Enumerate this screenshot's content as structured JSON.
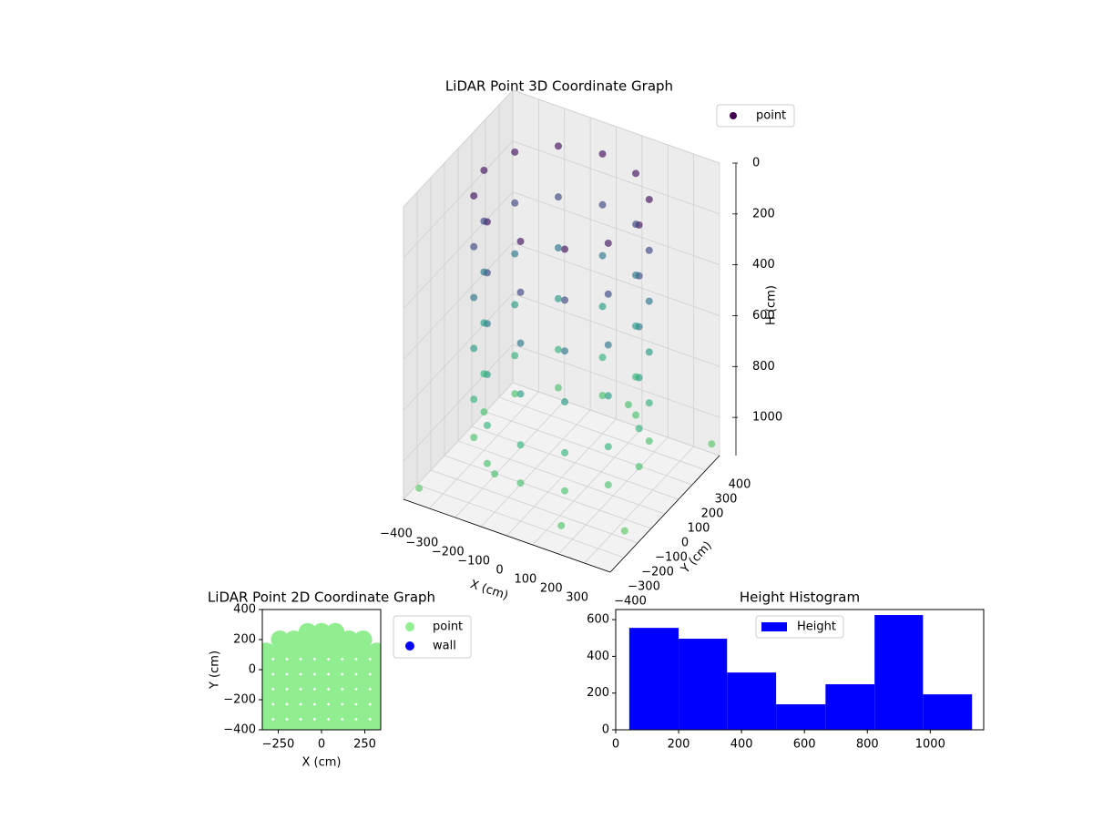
{
  "chart_data": [
    {
      "type": "scatter3d",
      "title": "LiDAR Point 3D Coordinate Graph",
      "xlabel": "X (cm)",
      "ylabel": "Y (cm)",
      "zlabel": "H (cm)",
      "colormap": "viridis",
      "legend": "upper right",
      "xlim": [
        -400,
        400
      ],
      "ylim": [
        -400,
        400
      ],
      "zlim": [
        1150,
        0
      ],
      "xticks": [
        {
          "value": -400,
          "label": "−400"
        },
        {
          "value": -300,
          "label": "−300"
        },
        {
          "value": -200,
          "label": "−200"
        },
        {
          "value": -100,
          "label": "−100"
        },
        0,
        100,
        200,
        300
      ],
      "yticks": [
        {
          "value": -400,
          "label": "−400"
        },
        {
          "value": -300,
          "label": "−300"
        },
        {
          "value": -200,
          "label": "−200"
        },
        {
          "value": -100,
          "label": "−100"
        },
        0,
        100,
        200,
        300,
        400
      ],
      "zticks": [
        0,
        200,
        400,
        600,
        800,
        1000
      ],
      "series": [
        {
          "name": "point",
          "color": "#440154",
          "x": [
            300,
            260,
            150,
            0,
            -150,
            -260,
            -300,
            -260,
            -150,
            0,
            150,
            260,
            300,
            260,
            150,
            0,
            -150,
            -260,
            -300,
            -260,
            -150,
            0,
            150,
            260,
            300,
            260,
            150,
            0,
            -150,
            -260,
            -300,
            -260,
            -150,
            0,
            150,
            260,
            300,
            260,
            150,
            0,
            -150,
            -260,
            -300,
            -260,
            -150,
            0,
            150,
            260,
            300,
            260,
            150,
            0,
            -150,
            -260,
            -300,
            -260,
            -150,
            0,
            150,
            260,
            300,
            260,
            150,
            0,
            -150,
            -260,
            -300,
            -260,
            -150,
            0,
            150,
            260,
            -350,
            380,
            200,
            -100,
            350,
            100
          ],
          "y": [
            0,
            150,
            260,
            300,
            260,
            150,
            0,
            -150,
            -260,
            -300,
            -260,
            -150,
            0,
            150,
            260,
            300,
            260,
            150,
            0,
            -150,
            -260,
            -300,
            -260,
            -150,
            0,
            150,
            260,
            300,
            260,
            150,
            0,
            -150,
            -260,
            -300,
            -260,
            -150,
            0,
            150,
            260,
            300,
            260,
            150,
            0,
            -150,
            -260,
            -300,
            -260,
            -150,
            0,
            150,
            260,
            300,
            260,
            150,
            0,
            -150,
            -260,
            -300,
            -260,
            -150,
            0,
            150,
            260,
            300,
            260,
            150,
            0,
            -150,
            -260,
            -300,
            -260,
            -150,
            -380,
            380,
            -380,
            -300,
            -200,
            300
          ],
          "h": [
            50,
            50,
            50,
            50,
            50,
            50,
            50,
            50,
            50,
            50,
            50,
            50,
            250,
            250,
            250,
            250,
            250,
            250,
            250,
            250,
            250,
            250,
            250,
            250,
            450,
            450,
            450,
            450,
            450,
            450,
            450,
            450,
            450,
            450,
            450,
            450,
            650,
            650,
            650,
            650,
            650,
            650,
            650,
            650,
            650,
            650,
            650,
            650,
            850,
            850,
            850,
            850,
            850,
            850,
            850,
            850,
            850,
            850,
            850,
            850,
            1000,
            1000,
            1000,
            1000,
            1000,
            1000,
            1000,
            1000,
            1000,
            1000,
            1000,
            1000,
            1100,
            1100,
            1050,
            1000,
            1120,
            1000
          ]
        }
      ]
    },
    {
      "type": "scatter",
      "title": "LiDAR Point 2D Coordinate Graph",
      "xlabel": "X (cm)",
      "ylabel": "Y (cm)",
      "legend": "outside right",
      "xlim": [
        -342,
        342
      ],
      "ylim": [
        -400,
        400
      ],
      "xticks": [
        {
          "value": -250,
          "label": "−250"
        },
        0,
        250
      ],
      "yticks": [
        {
          "value": -400,
          "label": "−400"
        },
        {
          "value": -200,
          "label": "−200"
        },
        0,
        200,
        400
      ],
      "series": [
        {
          "name": "point",
          "color": "#90ee90",
          "x": [
            -320,
            -240,
            -160,
            -80,
            0,
            80,
            160,
            240,
            320,
            -320,
            -240,
            -160,
            -80,
            0,
            80,
            160,
            240,
            320,
            -320,
            -240,
            -160,
            -80,
            0,
            80,
            160,
            240,
            320,
            -320,
            -240,
            -160,
            -80,
            0,
            80,
            160,
            240,
            320,
            -320,
            -240,
            -160,
            -80,
            0,
            80,
            160,
            240,
            320,
            -320,
            -240,
            -160,
            -80,
            0,
            80,
            160,
            240,
            320,
            -240,
            -160,
            -80,
            0,
            80,
            160,
            240,
            -80,
            0,
            80
          ],
          "y": [
            -380,
            -380,
            -380,
            -380,
            -380,
            -380,
            -380,
            -380,
            -380,
            -280,
            -280,
            -280,
            -280,
            -280,
            -280,
            -280,
            -280,
            -280,
            -180,
            -180,
            -180,
            -180,
            -180,
            -180,
            -180,
            -180,
            -180,
            -80,
            -80,
            -80,
            -80,
            -80,
            -80,
            -80,
            -80,
            -80,
            20,
            20,
            20,
            20,
            20,
            20,
            20,
            20,
            20,
            120,
            120,
            120,
            120,
            120,
            120,
            120,
            120,
            120,
            200,
            200,
            200,
            200,
            200,
            200,
            200,
            250,
            250,
            250
          ]
        },
        {
          "name": "wall",
          "color": "#0000ff",
          "x": [],
          "y": []
        }
      ]
    },
    {
      "type": "histogram",
      "title": "Height Histogram",
      "legend": "upper center",
      "xlim": [
        0,
        1170
      ],
      "ylim": [
        0,
        655
      ],
      "xticks": [
        0,
        200,
        400,
        600,
        800,
        1000
      ],
      "yticks": [
        0,
        200,
        400,
        600
      ],
      "series": [
        {
          "name": "Height",
          "color": "#0000ff",
          "bins": [
            43,
            200,
            354,
            510,
            667,
            823,
            977,
            1133
          ],
          "values": [
            555,
            496,
            312,
            139,
            248,
            625,
            193
          ]
        }
      ]
    }
  ]
}
